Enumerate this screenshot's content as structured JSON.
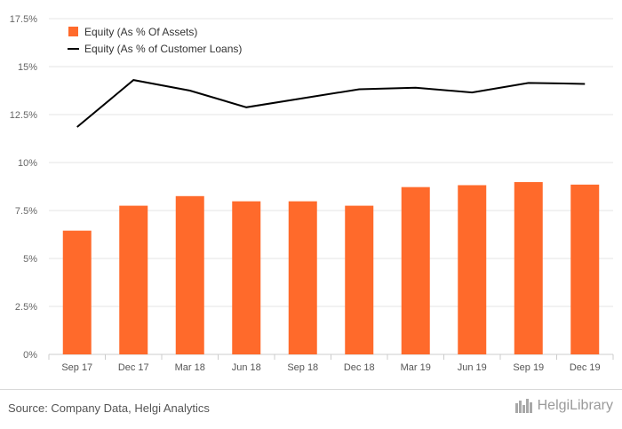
{
  "chart_data": {
    "type": "bar+line",
    "categories": [
      "Sep 17",
      "Dec 17",
      "Mar 18",
      "Jun 18",
      "Sep 18",
      "Dec 18",
      "Mar 19",
      "Jun 19",
      "Sep 19",
      "Dec 19"
    ],
    "series": [
      {
        "name": "Equity (As % Of Assets)",
        "type": "bar",
        "color": "#ff6a2b",
        "values": [
          6.45,
          7.75,
          8.25,
          7.98,
          7.98,
          7.75,
          8.72,
          8.82,
          8.98,
          8.85
        ]
      },
      {
        "name": "Equity (As % of Customer Loans)",
        "type": "line",
        "color": "#000000",
        "values": [
          11.85,
          14.3,
          13.75,
          12.88,
          13.35,
          13.82,
          13.9,
          13.65,
          14.15,
          14.1
        ]
      }
    ],
    "yticks": [
      "0%",
      "2.5%",
      "5%",
      "7.5%",
      "10%",
      "12.5%",
      "15%",
      "17.5%"
    ],
    "ylim": [
      0,
      17.5
    ],
    "grid": true,
    "legend_position": "top-left"
  },
  "footer": {
    "source": "Source: Company Data, Helgi Analytics",
    "logo_text": "HelgiLibrary",
    "logo_icon": "helgi-library-icon"
  }
}
